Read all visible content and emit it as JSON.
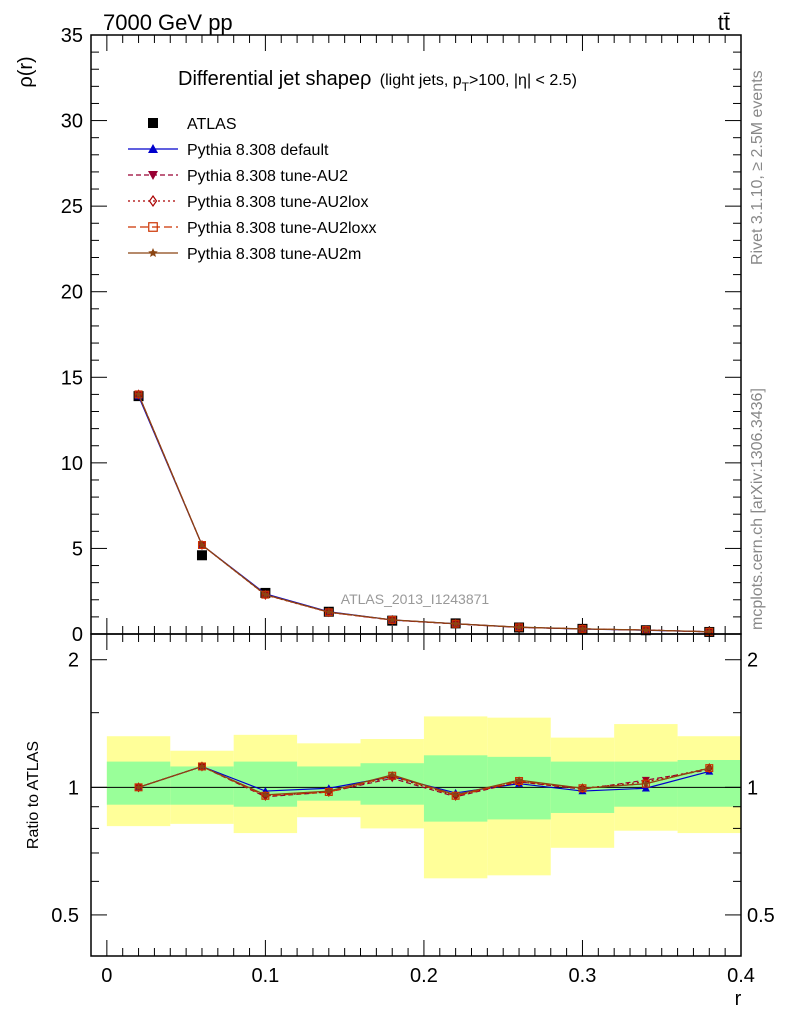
{
  "header": {
    "process": "7000 GeV pp",
    "final_state": "tt̄"
  },
  "side_labels": {
    "rivet": "Rivet 3.1.10, ≥ 2.5M events",
    "mcplots": "mcplots.cern.ch [arXiv:1306.3436]"
  },
  "analysis_label": "ATLAS_2013_I1243871",
  "colors": {
    "data": "#000000",
    "default": "#0000cc",
    "au2": "#990033",
    "au2lox": "#aa0000",
    "au2loxx": "#cc3300",
    "au2m": "#8b4513",
    "band_green": "#99ff99",
    "band_yellow": "#ffff99"
  },
  "chart_data": [
    {
      "type": "line",
      "panel": "main",
      "title": "Differential jet shapeρ (light jets, pT>100, |η| < 2.5)",
      "title_main": "Differential jet shapeρ",
      "title_detail": "(light jets, p",
      "title_sub": "T",
      "title_tail": ">100, |η| < 2.5)",
      "ylabel": "ρ(r)",
      "xlabel": "r",
      "xlim": [
        -0.01,
        0.4
      ],
      "ylim": [
        0,
        35
      ],
      "yticks": [
        0,
        5,
        10,
        15,
        20,
        25,
        30,
        35
      ],
      "x": [
        0.02,
        0.06,
        0.1,
        0.14,
        0.18,
        0.22,
        0.26,
        0.3,
        0.34,
        0.38
      ],
      "series": [
        {
          "name": "ATLAS",
          "marker": "square",
          "color": "#000000",
          "values": [
            13.9,
            4.6,
            2.4,
            1.3,
            0.78,
            0.62,
            0.38,
            0.3,
            0.22,
            0.12
          ]
        },
        {
          "name": "Pythia 8.308 default",
          "marker": "triangle-up",
          "color": "#0000cc",
          "dash": "",
          "values": [
            13.9,
            5.2,
            2.35,
            1.3,
            0.82,
            0.6,
            0.39,
            0.29,
            0.22,
            0.13
          ]
        },
        {
          "name": "Pythia 8.308 tune-AU2",
          "marker": "triangle-down",
          "color": "#990033",
          "dash": "5,3",
          "values": [
            14.0,
            5.2,
            2.3,
            1.27,
            0.81,
            0.59,
            0.39,
            0.3,
            0.23,
            0.13
          ]
        },
        {
          "name": "Pythia 8.308 tune-AU2lox",
          "marker": "diamond-open",
          "color": "#aa0000",
          "dash": "2,3",
          "values": [
            14.0,
            5.2,
            2.28,
            1.27,
            0.82,
            0.59,
            0.39,
            0.3,
            0.23,
            0.13
          ]
        },
        {
          "name": "Pythia 8.308 tune-AU2loxx",
          "marker": "square-open",
          "color": "#cc3300",
          "dash": "8,4",
          "values": [
            14.0,
            5.2,
            2.3,
            1.27,
            0.82,
            0.6,
            0.39,
            0.3,
            0.23,
            0.13
          ]
        },
        {
          "name": "Pythia 8.308 tune-AU2m",
          "marker": "star",
          "color": "#8b4513",
          "dash": "",
          "values": [
            14.0,
            5.2,
            2.3,
            1.28,
            0.83,
            0.6,
            0.4,
            0.3,
            0.23,
            0.13
          ]
        }
      ],
      "legend_position": "top-left"
    },
    {
      "type": "line",
      "panel": "ratio",
      "ylabel": "Ratio to ATLAS",
      "xlabel": "r",
      "xlim": [
        -0.01,
        0.4
      ],
      "ylim": [
        0.4,
        2.3
      ],
      "log_y": true,
      "yticks": [
        0.5,
        1,
        2
      ],
      "xticks": [
        0,
        0.1,
        0.2,
        0.3,
        0.4
      ],
      "bin_edges": [
        0.0,
        0.04,
        0.08,
        0.12,
        0.16,
        0.2,
        0.24,
        0.28,
        0.32,
        0.36,
        0.4
      ],
      "band_inner": [
        [
          0.91,
          1.15
        ],
        [
          0.91,
          1.12
        ],
        [
          0.9,
          1.15
        ],
        [
          0.93,
          1.12
        ],
        [
          0.91,
          1.14
        ],
        [
          0.83,
          1.19
        ],
        [
          0.84,
          1.18
        ],
        [
          0.87,
          1.15
        ],
        [
          0.9,
          1.15
        ],
        [
          0.9,
          1.16
        ]
      ],
      "band_outer": [
        [
          0.81,
          1.32
        ],
        [
          0.82,
          1.22
        ],
        [
          0.78,
          1.33
        ],
        [
          0.85,
          1.27
        ],
        [
          0.8,
          1.3
        ],
        [
          0.61,
          1.47
        ],
        [
          0.62,
          1.46
        ],
        [
          0.72,
          1.31
        ],
        [
          0.79,
          1.41
        ],
        [
          0.78,
          1.32
        ]
      ],
      "x": [
        0.02,
        0.06,
        0.1,
        0.14,
        0.18,
        0.22,
        0.26,
        0.3,
        0.34,
        0.38
      ],
      "series": [
        {
          "name": "Pythia 8.308 default",
          "color": "#0000cc",
          "dash": "",
          "marker": "triangle-up",
          "values": [
            1.0,
            1.12,
            0.98,
            0.995,
            1.06,
            0.97,
            1.02,
            0.98,
            0.995,
            1.09
          ]
        },
        {
          "name": "Pythia 8.308 tune-AU2",
          "color": "#990033",
          "dash": "5,3",
          "marker": "triangle-down",
          "values": [
            1.0,
            1.12,
            0.95,
            0.975,
            1.05,
            0.95,
            1.03,
            0.99,
            1.04,
            1.1
          ]
        },
        {
          "name": "Pythia 8.308 tune-AU2lox",
          "color": "#aa0000",
          "dash": "2,3",
          "marker": "diamond-open",
          "values": [
            1.0,
            1.12,
            0.955,
            0.975,
            1.06,
            0.955,
            1.03,
            0.995,
            1.03,
            1.11
          ]
        },
        {
          "name": "Pythia 8.308 tune-AU2loxx",
          "color": "#cc3300",
          "dash": "8,4",
          "marker": "square-open",
          "values": [
            1.0,
            1.12,
            0.955,
            0.975,
            1.065,
            0.955,
            1.035,
            0.995,
            1.02,
            1.11
          ]
        },
        {
          "name": "Pythia 8.308 tune-AU2m",
          "color": "#8b4513",
          "dash": "",
          "marker": "star",
          "values": [
            1.0,
            1.12,
            0.96,
            0.98,
            1.07,
            0.96,
            1.04,
            0.995,
            1.02,
            1.11
          ]
        }
      ]
    }
  ]
}
